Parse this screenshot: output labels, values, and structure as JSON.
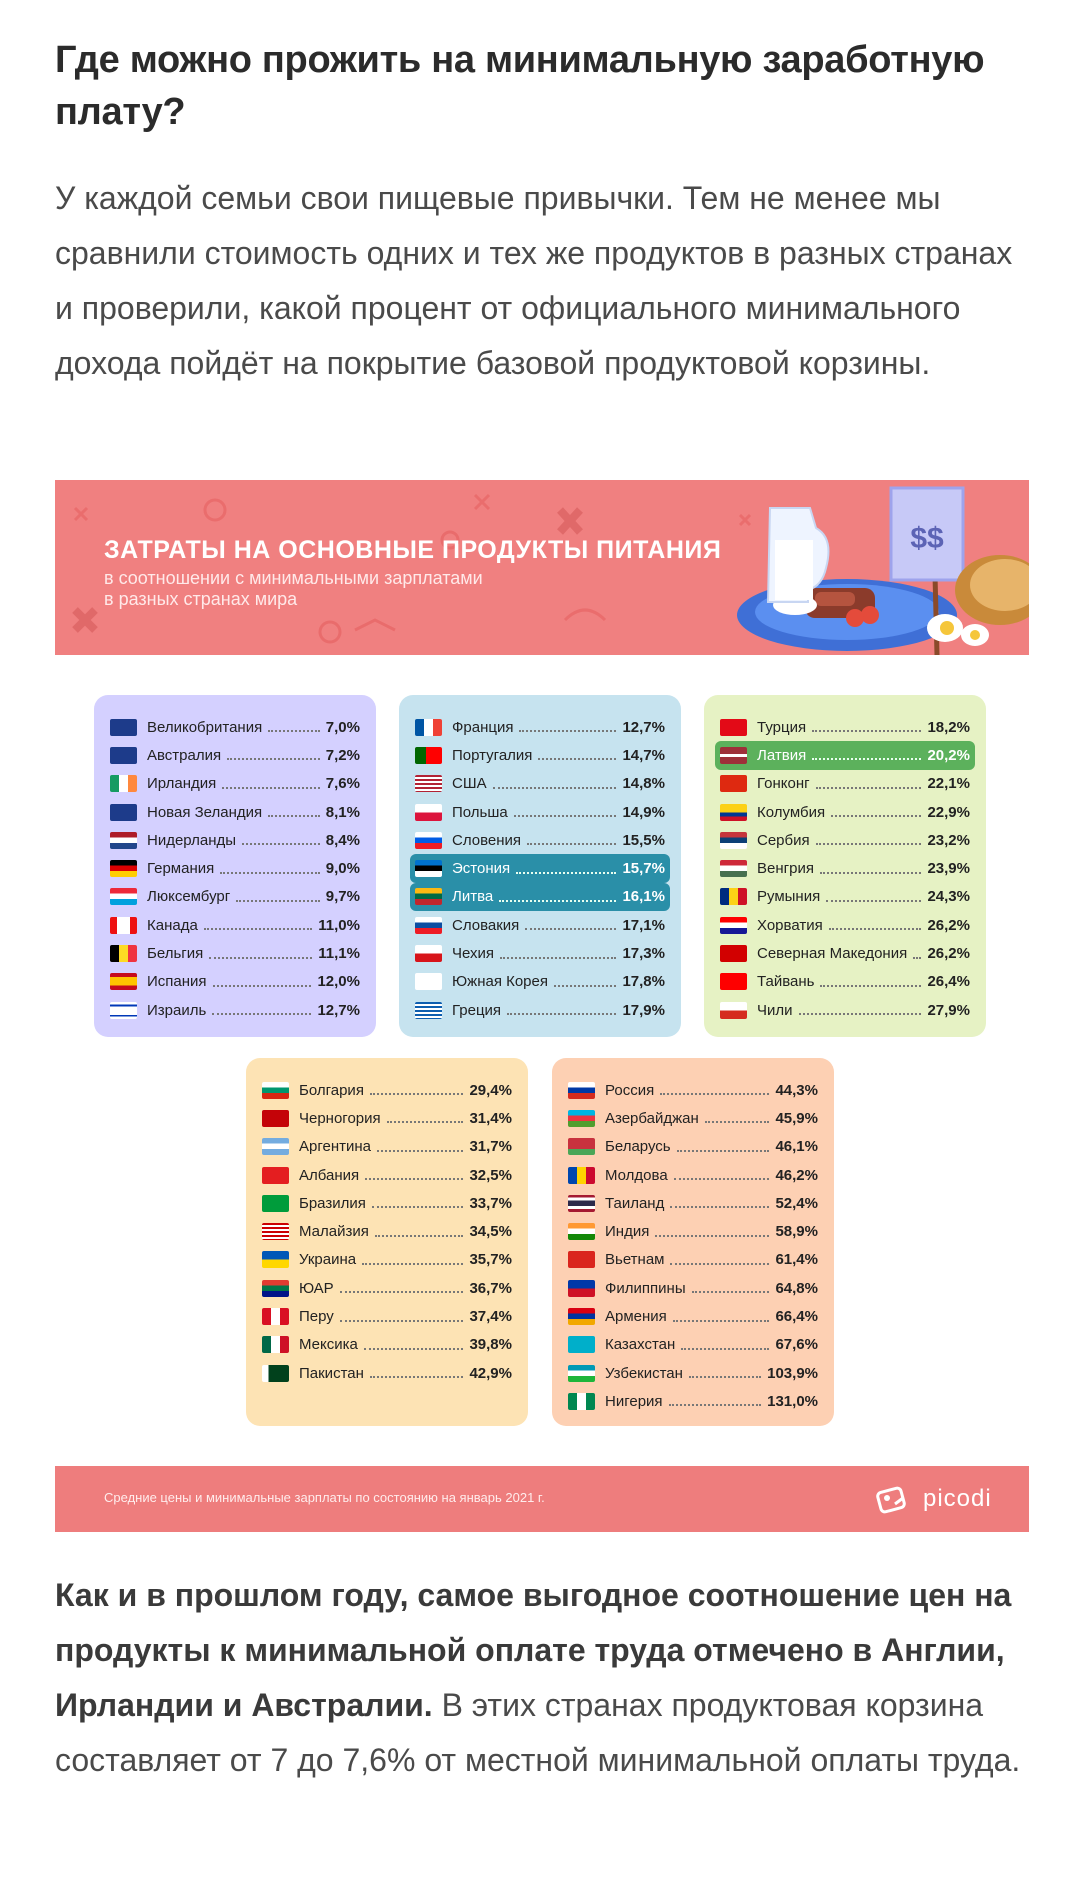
{
  "heading": "Где можно прожить на минимальную заработную плату?",
  "lead": "У каждой семьи свои пищевые привычки. Тем не менее мы сравнили стоимость одних и тех же продуктов в разных странах и проверили, какой процент от официального минимального дохода пойдёт на покрытие базовой продуктовой корзины.",
  "infographic": {
    "title": "ЗАТРАТЫ НА ОСНОВНЫЕ ПРОДУКТЫ ПИТАНИЯ",
    "subtitle_line1": "в соотношении с минимальными зарплатами",
    "subtitle_line2": "в разных странах мира",
    "price_sign": "$$",
    "footer_note": "Средние цены и минимальные зарплаты по состоянию на январь 2021 г.",
    "brand": "picodi",
    "panels": [
      {
        "bg": "#d4d0ff",
        "rows": [
          {
            "name": "Великобритания",
            "pct": "7,0%",
            "flag": "gb"
          },
          {
            "name": "Австралия",
            "pct": "7,2%",
            "flag": "au"
          },
          {
            "name": "Ирландия",
            "pct": "7,6%",
            "flag": "ie"
          },
          {
            "name": "Новая Зеландия",
            "pct": "8,1%",
            "flag": "nz"
          },
          {
            "name": "Нидерланды",
            "pct": "8,4%",
            "flag": "nl"
          },
          {
            "name": "Германия",
            "pct": "9,0%",
            "flag": "de"
          },
          {
            "name": "Люксембург",
            "pct": "9,7%",
            "flag": "lu"
          },
          {
            "name": "Канада",
            "pct": "11,0%",
            "flag": "ca"
          },
          {
            "name": "Бельгия",
            "pct": "11,1%",
            "flag": "be"
          },
          {
            "name": "Испания",
            "pct": "12,0%",
            "flag": "es"
          },
          {
            "name": "Израиль",
            "pct": "12,7%",
            "flag": "il"
          }
        ]
      },
      {
        "bg": "#c6e3ef",
        "rows": [
          {
            "name": "Франция",
            "pct": "12,7%",
            "flag": "fr"
          },
          {
            "name": "Португалия",
            "pct": "14,7%",
            "flag": "pt"
          },
          {
            "name": "США",
            "pct": "14,8%",
            "flag": "us"
          },
          {
            "name": "Польша",
            "pct": "14,9%",
            "flag": "pl"
          },
          {
            "name": "Словения",
            "pct": "15,5%",
            "flag": "si"
          },
          {
            "name": "Эстония",
            "pct": "15,7%",
            "flag": "ee",
            "highlight": "#2a8fa8"
          },
          {
            "name": "Литва",
            "pct": "16,1%",
            "flag": "lt",
            "highlight": "#2a8fa8"
          },
          {
            "name": "Словакия",
            "pct": "17,1%",
            "flag": "sk"
          },
          {
            "name": "Чехия",
            "pct": "17,3%",
            "flag": "cz"
          },
          {
            "name": "Южная Корея",
            "pct": "17,8%",
            "flag": "kr"
          },
          {
            "name": "Греция",
            "pct": "17,9%",
            "flag": "gr"
          }
        ]
      },
      {
        "bg": "#e6f2c4",
        "rows": [
          {
            "name": "Турция",
            "pct": "18,2%",
            "flag": "tr"
          },
          {
            "name": "Латвия",
            "pct": "20,2%",
            "flag": "lv",
            "highlight": "#5cb15c"
          },
          {
            "name": "Гонконг",
            "pct": "22,1%",
            "flag": "hk"
          },
          {
            "name": "Колумбия",
            "pct": "22,9%",
            "flag": "co"
          },
          {
            "name": "Сербия",
            "pct": "23,2%",
            "flag": "rs"
          },
          {
            "name": "Венгрия",
            "pct": "23,9%",
            "flag": "hu"
          },
          {
            "name": "Румыния",
            "pct": "24,3%",
            "flag": "ro"
          },
          {
            "name": "Хорватия",
            "pct": "26,2%",
            "flag": "hr"
          },
          {
            "name": "Северная Македония",
            "pct": "26,2%",
            "flag": "mk"
          },
          {
            "name": "Тайвань",
            "pct": "26,4%",
            "flag": "tw"
          },
          {
            "name": "Чили",
            "pct": "27,9%",
            "flag": "cl"
          }
        ]
      },
      {
        "bg": "#fde3b4",
        "rows": [
          {
            "name": "Болгария",
            "pct": "29,4%",
            "flag": "bg"
          },
          {
            "name": "Черногория",
            "pct": "31,4%",
            "flag": "me"
          },
          {
            "name": "Аргентина",
            "pct": "31,7%",
            "flag": "ar"
          },
          {
            "name": "Албания",
            "pct": "32,5%",
            "flag": "al"
          },
          {
            "name": "Бразилия",
            "pct": "33,7%",
            "flag": "br"
          },
          {
            "name": "Малайзия",
            "pct": "34,5%",
            "flag": "my"
          },
          {
            "name": "Украина",
            "pct": "35,7%",
            "flag": "ua"
          },
          {
            "name": "ЮАР",
            "pct": "36,7%",
            "flag": "za"
          },
          {
            "name": "Перу",
            "pct": "37,4%",
            "flag": "pe"
          },
          {
            "name": "Мексика",
            "pct": "39,8%",
            "flag": "mx"
          },
          {
            "name": "Пакистан",
            "pct": "42,9%",
            "flag": "pk"
          }
        ]
      },
      {
        "bg": "#fdd0b3",
        "rows": [
          {
            "name": "Россия",
            "pct": "44,3%",
            "flag": "ru"
          },
          {
            "name": "Азербайджан",
            "pct": "45,9%",
            "flag": "az"
          },
          {
            "name": "Беларусь",
            "pct": "46,1%",
            "flag": "by"
          },
          {
            "name": "Молдова",
            "pct": "46,2%",
            "flag": "md"
          },
          {
            "name": "Таиланд",
            "pct": "52,4%",
            "flag": "th"
          },
          {
            "name": "Индия",
            "pct": "58,9%",
            "flag": "in"
          },
          {
            "name": "Вьетнам",
            "pct": "61,4%",
            "flag": "vn"
          },
          {
            "name": "Филиппины",
            "pct": "64,8%",
            "flag": "ph"
          },
          {
            "name": "Армения",
            "pct": "66,4%",
            "flag": "am"
          },
          {
            "name": "Казахстан",
            "pct": "67,6%",
            "flag": "kz"
          },
          {
            "name": "Узбекистан",
            "pct": "103,9%",
            "flag": "uz"
          },
          {
            "name": "Нигерия",
            "pct": "131,0%",
            "flag": "ng"
          }
        ]
      }
    ]
  },
  "after_bold": "Как и в прошлом году, самое выгодное соотношение цен на продукты к минимальной оплате труда отмечено в Англии, Ирландии и Австралии.",
  "after_text": " В этих странах продуктовая корзина составляет от 7 до 7,6% от местной минимальной оплаты труда."
}
